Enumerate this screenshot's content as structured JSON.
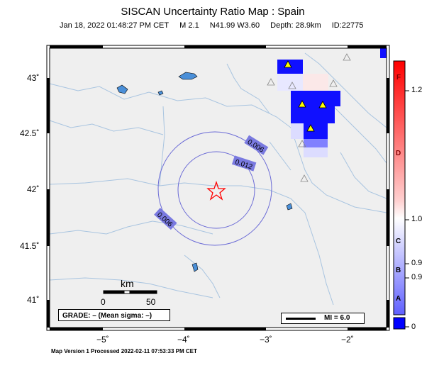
{
  "header": {
    "title": "SISCAN Uncertainty Ratio Map : Spain",
    "date": "Jan 18, 2022 01:48:27 PM CET",
    "magnitude": "M 2.1",
    "location": "N41.99 W3.60",
    "depth": "Depth: 28.9km",
    "event_id": "ID:22775"
  },
  "axes": {
    "lat_labels": [
      "43˚",
      "42.5˚",
      "42˚",
      "41.5˚",
      "41˚"
    ],
    "lon_labels": [
      "−5˚",
      "−4˚",
      "−3˚",
      "−2˚"
    ]
  },
  "contours": {
    "outer_label": "0.006",
    "inner_label": "0.012",
    "lower_label": "0.006",
    "color": "#6b6bd6"
  },
  "scale_bar": {
    "unit": "km",
    "start": "0",
    "end": "50"
  },
  "grade_box": {
    "text": "GRADE: – (Mean sigma: –)"
  },
  "legend": {
    "mi_text": "MI = 6.0"
  },
  "colorbar": {
    "tick_labels": [
      "1.2",
      "1.0",
      "0.9",
      "0.9",
      "0"
    ],
    "grade_letters": [
      "F",
      "D",
      "C",
      "B",
      "A"
    ],
    "top_color": "#ff0000",
    "mid_color": "#ffffff",
    "bottom_color": "#0000ff"
  },
  "colors": {
    "land": "#efefef",
    "river": "#a8c4e0",
    "lake": "#4a8fd8",
    "station": "#ffff00",
    "epicenter": "#ff0000"
  },
  "footer": {
    "text": "Map Version 1 Processed 2022-02-11 07:53:33 PM CET"
  }
}
